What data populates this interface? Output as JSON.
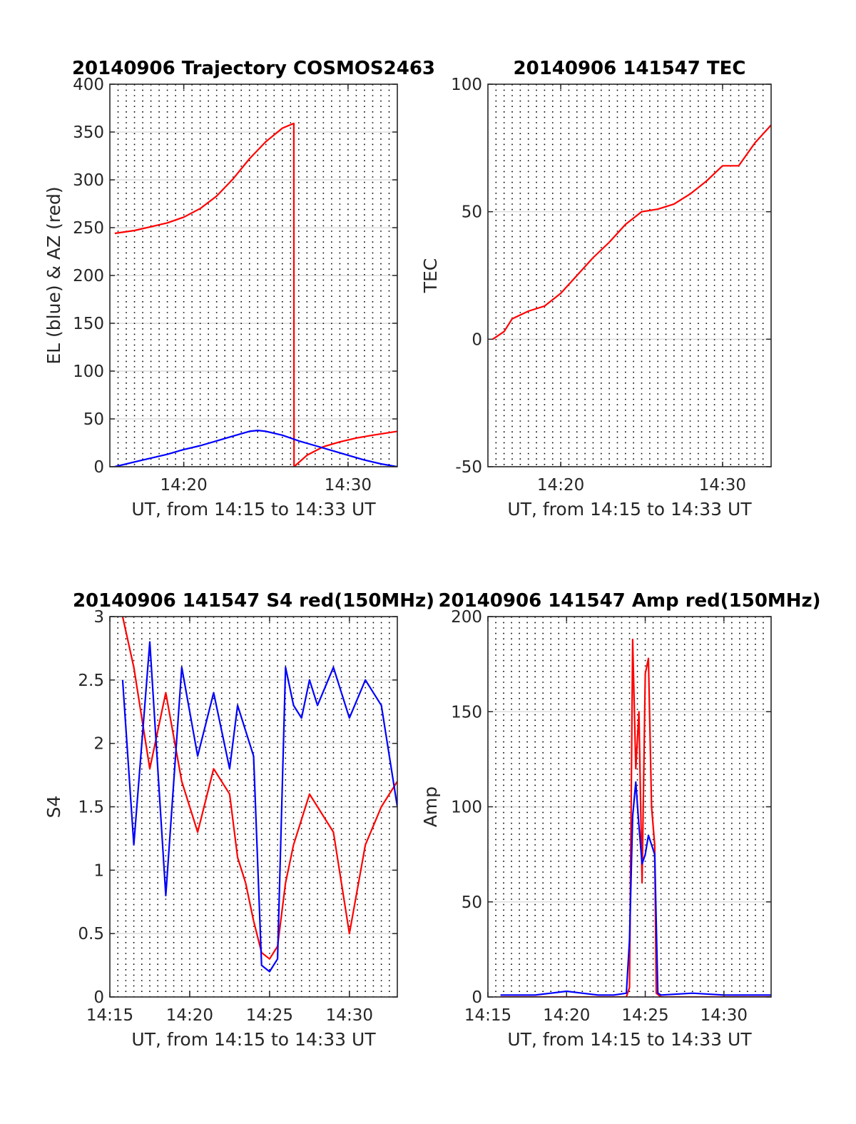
{
  "chart_data": [
    {
      "type": "line",
      "title": "20140906 Trajectory COSMOS2463",
      "xlabel": "UT, from 14:15 to 14:33 UT",
      "ylabel": "EL (blue) & AZ (red)",
      "xlim": [
        15.5,
        33
      ],
      "ylim": [
        0,
        400
      ],
      "yticks": [
        0,
        50,
        100,
        150,
        200,
        250,
        300,
        350,
        400
      ],
      "xticks": [
        20,
        30
      ],
      "xtick_labels": [
        "14:20",
        "14:30"
      ],
      "grid": "y-solid, x-dotted-30s",
      "series": [
        {
          "color": "#ff0000",
          "x": [
            15.8,
            17,
            18,
            19,
            20,
            21,
            22,
            23,
            24,
            25,
            26,
            26.7,
            26.71,
            27.5,
            28.5,
            29.5,
            30.5,
            31.5,
            33
          ],
          "y": [
            244,
            247,
            251,
            255,
            261,
            270,
            283,
            301,
            322,
            340,
            354,
            359,
            0,
            12,
            21,
            26,
            30,
            33,
            37
          ]
        },
        {
          "color": "#0000ff",
          "x": [
            15.8,
            17,
            18,
            19,
            20,
            21,
            22,
            23,
            24,
            24.5,
            25,
            26,
            27,
            28,
            29,
            30,
            31,
            32,
            33
          ],
          "y": [
            0,
            5,
            9,
            13,
            18,
            22,
            27,
            32,
            37,
            38,
            37,
            33,
            27,
            22,
            17,
            12,
            7,
            3,
            0
          ]
        }
      ]
    },
    {
      "type": "line",
      "title": "20140906 141547 TEC",
      "xlabel": "UT, from 14:15 to 14:33 UT",
      "ylabel": "TEC",
      "xlim": [
        15.5,
        33
      ],
      "ylim": [
        -50,
        100
      ],
      "yticks": [
        -50,
        0,
        50,
        100
      ],
      "xticks": [
        20,
        30
      ],
      "xtick_labels": [
        "14:20",
        "14:30"
      ],
      "grid": "y-solid, x-dotted-30s",
      "series": [
        {
          "color": "#ff0000",
          "x": [
            15.8,
            16.5,
            17,
            18,
            19,
            20,
            21,
            22,
            23,
            24,
            25,
            26,
            27,
            28,
            29,
            30,
            31,
            32,
            33
          ],
          "y": [
            0,
            3,
            8,
            11,
            13,
            18,
            25,
            32,
            38,
            45,
            50,
            51,
            53,
            57,
            62,
            68,
            68,
            77,
            84
          ]
        }
      ]
    },
    {
      "type": "line",
      "title": "20140906 141547 S4 red(150MHz)",
      "xlabel": "UT, from 14:15 to 14:33 UT",
      "ylabel": "S4",
      "xlim": [
        15,
        33
      ],
      "ylim": [
        0,
        3
      ],
      "yticks": [
        0,
        0.5,
        1,
        1.5,
        2,
        2.5,
        3
      ],
      "xticks": [
        15,
        20,
        25,
        30
      ],
      "xtick_labels": [
        "14:15",
        "14:20",
        "14:25",
        "14:30"
      ],
      "grid": "y-solid, x-dotted-30s",
      "series": [
        {
          "color": "#ff0000",
          "x": [
            15.8,
            16.5,
            17.5,
            18.5,
            19.5,
            20.5,
            21.5,
            22.5,
            23.0,
            23.5,
            24.0,
            24.5,
            25.0,
            25.5,
            26.0,
            26.5,
            27.0,
            27.5,
            28.0,
            29.0,
            30.0,
            31.0,
            32.0,
            33.0
          ],
          "y": [
            3.0,
            2.6,
            1.8,
            2.4,
            1.7,
            1.3,
            1.8,
            1.6,
            1.1,
            0.9,
            0.6,
            0.35,
            0.3,
            0.4,
            0.9,
            1.2,
            1.4,
            1.6,
            1.5,
            1.3,
            0.5,
            1.2,
            1.5,
            1.7
          ]
        },
        {
          "color": "#0000ff",
          "x": [
            15.8,
            16.5,
            17.5,
            18.5,
            19.5,
            20.5,
            21.5,
            22.5,
            23.0,
            23.5,
            24.0,
            24.5,
            25.0,
            25.5,
            26.0,
            26.5,
            27.0,
            27.5,
            28.0,
            29.0,
            30.0,
            31.0,
            32.0,
            33.0
          ],
          "y": [
            2.5,
            1.2,
            2.8,
            0.8,
            2.6,
            1.9,
            2.4,
            1.8,
            2.3,
            2.1,
            1.9,
            0.25,
            0.2,
            0.3,
            2.6,
            2.3,
            2.2,
            2.5,
            2.3,
            2.6,
            2.2,
            2.5,
            2.3,
            1.5
          ]
        }
      ]
    },
    {
      "type": "line",
      "title": "20140906 141547 Amp red(150MHz)",
      "xlabel": "UT, from 14:15 to 14:33 UT",
      "ylabel": "Amp",
      "xlim": [
        15,
        33
      ],
      "ylim": [
        0,
        200
      ],
      "yticks": [
        0,
        50,
        100,
        150,
        200
      ],
      "xticks": [
        15,
        20,
        25,
        30
      ],
      "xtick_labels": [
        "14:15",
        "14:20",
        "14:25",
        "14:30"
      ],
      "grid": "y-solid, x-dotted-30s",
      "series": [
        {
          "color": "#ff0000",
          "x": [
            15.8,
            20,
            23.8,
            24.0,
            24.2,
            24.4,
            24.6,
            24.8,
            25.0,
            25.2,
            25.4,
            25.6,
            25.7,
            26.0,
            30,
            33
          ],
          "y": [
            0,
            0,
            0,
            5,
            188,
            120,
            150,
            60,
            170,
            178,
            100,
            80,
            2,
            0,
            0,
            0
          ]
        },
        {
          "color": "#0000ff",
          "x": [
            15.8,
            18,
            19,
            20,
            21,
            22,
            23,
            23.8,
            24.0,
            24.2,
            24.4,
            24.6,
            24.8,
            25.0,
            25.2,
            25.4,
            25.6,
            25.8,
            26,
            28,
            30,
            33
          ],
          "y": [
            1,
            1,
            2,
            3,
            2,
            1,
            1,
            2,
            30,
            95,
            113,
            90,
            70,
            75,
            85,
            80,
            75,
            2,
            1,
            2,
            1,
            1
          ]
        }
      ]
    }
  ]
}
